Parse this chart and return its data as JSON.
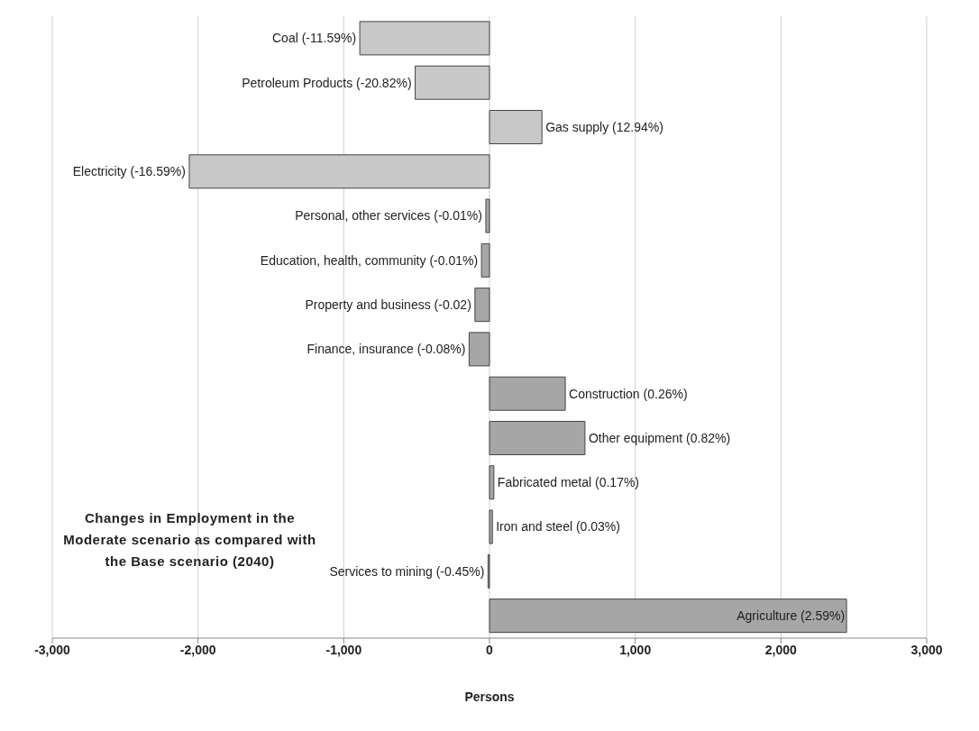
{
  "chart_data": {
    "type": "bar",
    "orientation": "horizontal",
    "title": "Changes in Employment in the Moderate scenario as compared with the Base scenario (2040)",
    "xlabel": "Persons",
    "categories": [
      "Coal (-11.59%)",
      "Petroleum Products (-20.82%)",
      "Gas supply (12.94%)",
      "Electricity (-16.59%)",
      "Personal, other services (-0.01%)",
      "Education, health, community (-0.01%)",
      "Property and business (-0.02)",
      "Finance, insurance (-0.08%)",
      "Construction (0.26%)",
      "Other equipment (0.82%)",
      "Fabricated metal (0.17%)",
      "Iron and steel (0.03%)",
      "Services to mining (-0.45%)",
      "Agriculture (2.59%)"
    ],
    "values": [
      -890,
      -510,
      360,
      -2060,
      -25,
      -55,
      -100,
      -140,
      520,
      655,
      30,
      20,
      -10,
      2450
    ],
    "colors": [
      "#c8c8c8",
      "#c8c8c8",
      "#c8c8c8",
      "#c8c8c8",
      "#a6a6a6",
      "#a6a6a6",
      "#a6a6a6",
      "#a6a6a6",
      "#a6a6a6",
      "#a6a6a6",
      "#a6a6a6",
      "#a6a6a6",
      "#a6a6a6",
      "#a6a6a6"
    ],
    "xlim": [
      -3000,
      3000
    ],
    "xticks": [
      {
        "value": -3000,
        "label": "-3,000"
      },
      {
        "value": -2000,
        "label": "-2,000"
      },
      {
        "value": -1000,
        "label": "-1,000"
      },
      0,
      {
        "value": 1000,
        "label": "1,000"
      },
      {
        "value": 2000,
        "label": "2,000"
      },
      {
        "value": 3000,
        "label": "3,000"
      }
    ],
    "grid": "x",
    "legend": false
  }
}
